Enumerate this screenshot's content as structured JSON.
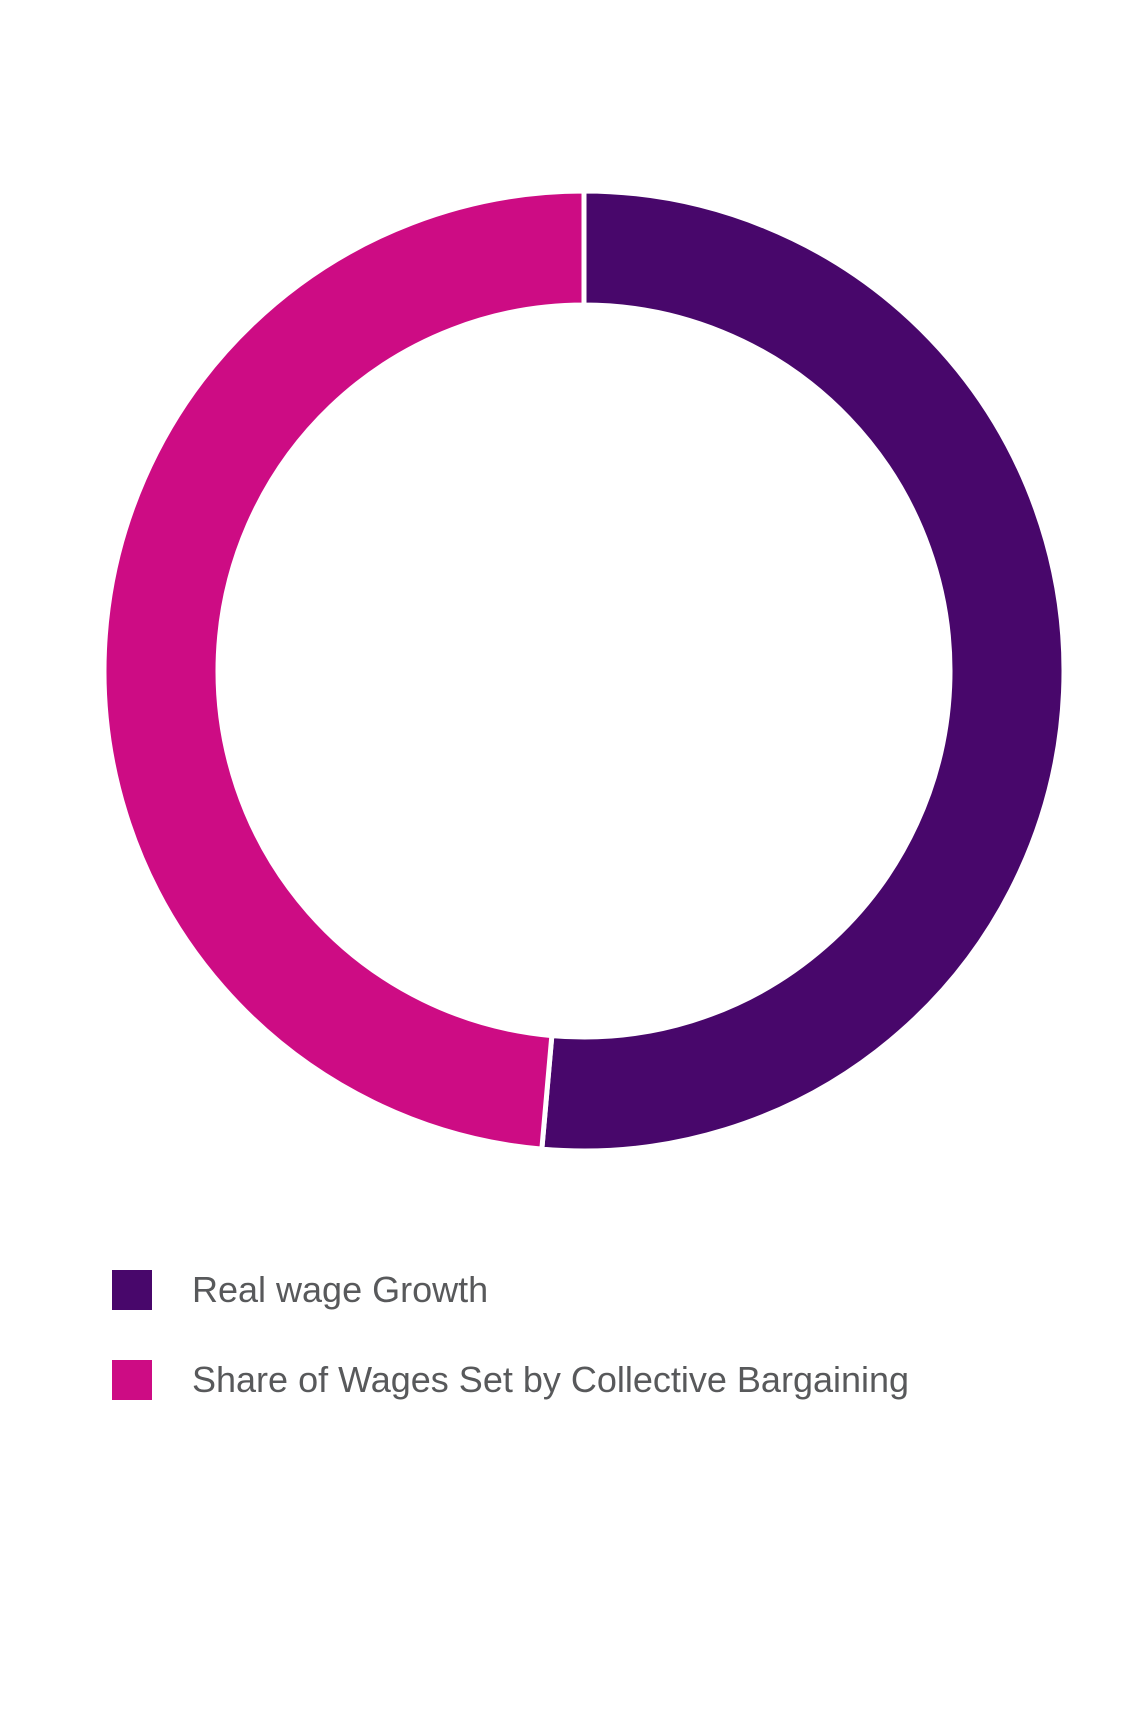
{
  "chart_data": {
    "type": "pie",
    "donut": true,
    "labels": [
      "Real wage Growth",
      "Share of Wages Set by Collective Bargaining"
    ],
    "values": [
      51.4,
      48.6
    ],
    "colors": [
      "#48076b",
      "#cd0c84"
    ],
    "legend_position": "bottom-left",
    "start_angle": "top",
    "direction": "clockwise"
  }
}
